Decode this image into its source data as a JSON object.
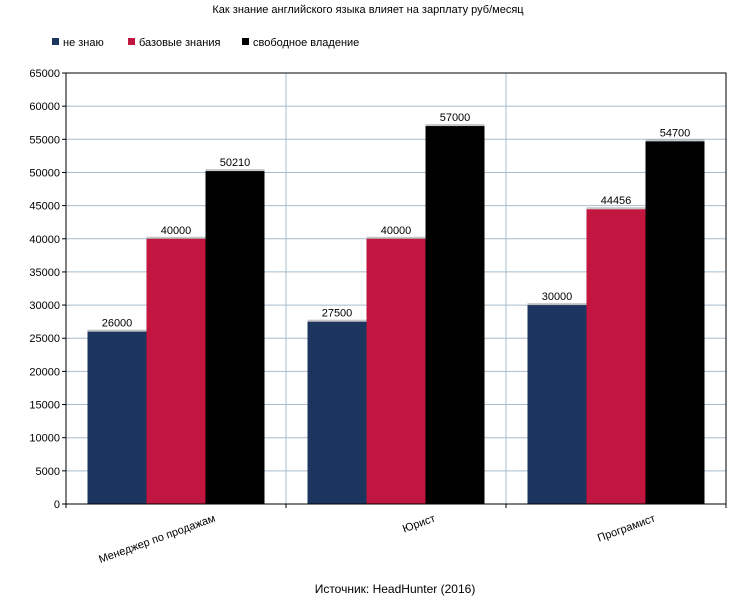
{
  "chart_data": {
    "type": "bar",
    "title": "Как знание английского языка влияет на зарплату  руб/месяц",
    "source": "Источник: HeadHunter (2016)",
    "categories": [
      "Менеджер по продажам",
      "Юрист",
      "Програмист"
    ],
    "series": [
      {
        "name": "не знаю",
        "color": "#1c355e",
        "values": [
          26000,
          27500,
          30000
        ],
        "labels": [
          "26000",
          "27500",
          "30000"
        ]
      },
      {
        "name": "базовые знания",
        "color": "#c0163f",
        "values": [
          40000,
          40000,
          44456
        ],
        "labels": [
          "40000",
          "40000",
          "44456"
        ]
      },
      {
        "name": "свободное владение",
        "color": "#000000",
        "values": [
          50210,
          57000,
          54700
        ],
        "labels": [
          "50210",
          "57000",
          "54700"
        ]
      }
    ],
    "yticks": [
      0,
      5000,
      10000,
      15000,
      20000,
      25000,
      30000,
      35000,
      40000,
      45000,
      50000,
      55000,
      60000,
      65000
    ],
    "ylim": [
      0,
      65000
    ],
    "grid": true,
    "legend_position": "top-left",
    "xlabel": "",
    "ylabel": ""
  }
}
